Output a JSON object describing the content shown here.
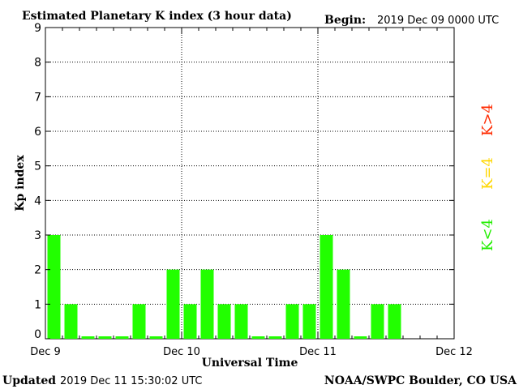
{
  "header": {
    "title": "Estimated Planetary K index (3 hour data)",
    "begin_label": "Begin:",
    "begin_value": "2019 Dec 09 0000 UTC"
  },
  "footer": {
    "updated_label": "Updated",
    "updated_value": "2019 Dec 11 15:30:02 UTC",
    "source": "NOAA/SWPC Boulder, CO USA"
  },
  "legend": {
    "items": [
      {
        "label": "K>4",
        "color": "#ff2a00"
      },
      {
        "label": "K=4",
        "color": "#ffd700"
      },
      {
        "label": "K<4",
        "color": "#22ee00"
      }
    ]
  },
  "colors": {
    "low": "#22ff00",
    "mid": "#ffd700",
    "high": "#ff2a00"
  },
  "chart_data": {
    "type": "bar",
    "title": "Estimated Planetary K index (3 hour data)",
    "xlabel": "Universal Time",
    "ylabel": "Kp index",
    "ylim": [
      0,
      9
    ],
    "yticks": [
      0,
      1,
      2,
      3,
      4,
      5,
      6,
      7,
      8,
      9
    ],
    "x_tick_labels": [
      "Dec 9",
      "Dec 10",
      "Dec 11",
      "Dec 12"
    ],
    "grid": true,
    "slots_total": 24,
    "values": [
      3,
      1,
      0,
      0,
      0,
      1,
      0,
      2,
      1,
      2,
      1,
      1,
      0,
      0,
      1,
      1,
      3,
      2,
      0,
      1,
      1
    ]
  }
}
